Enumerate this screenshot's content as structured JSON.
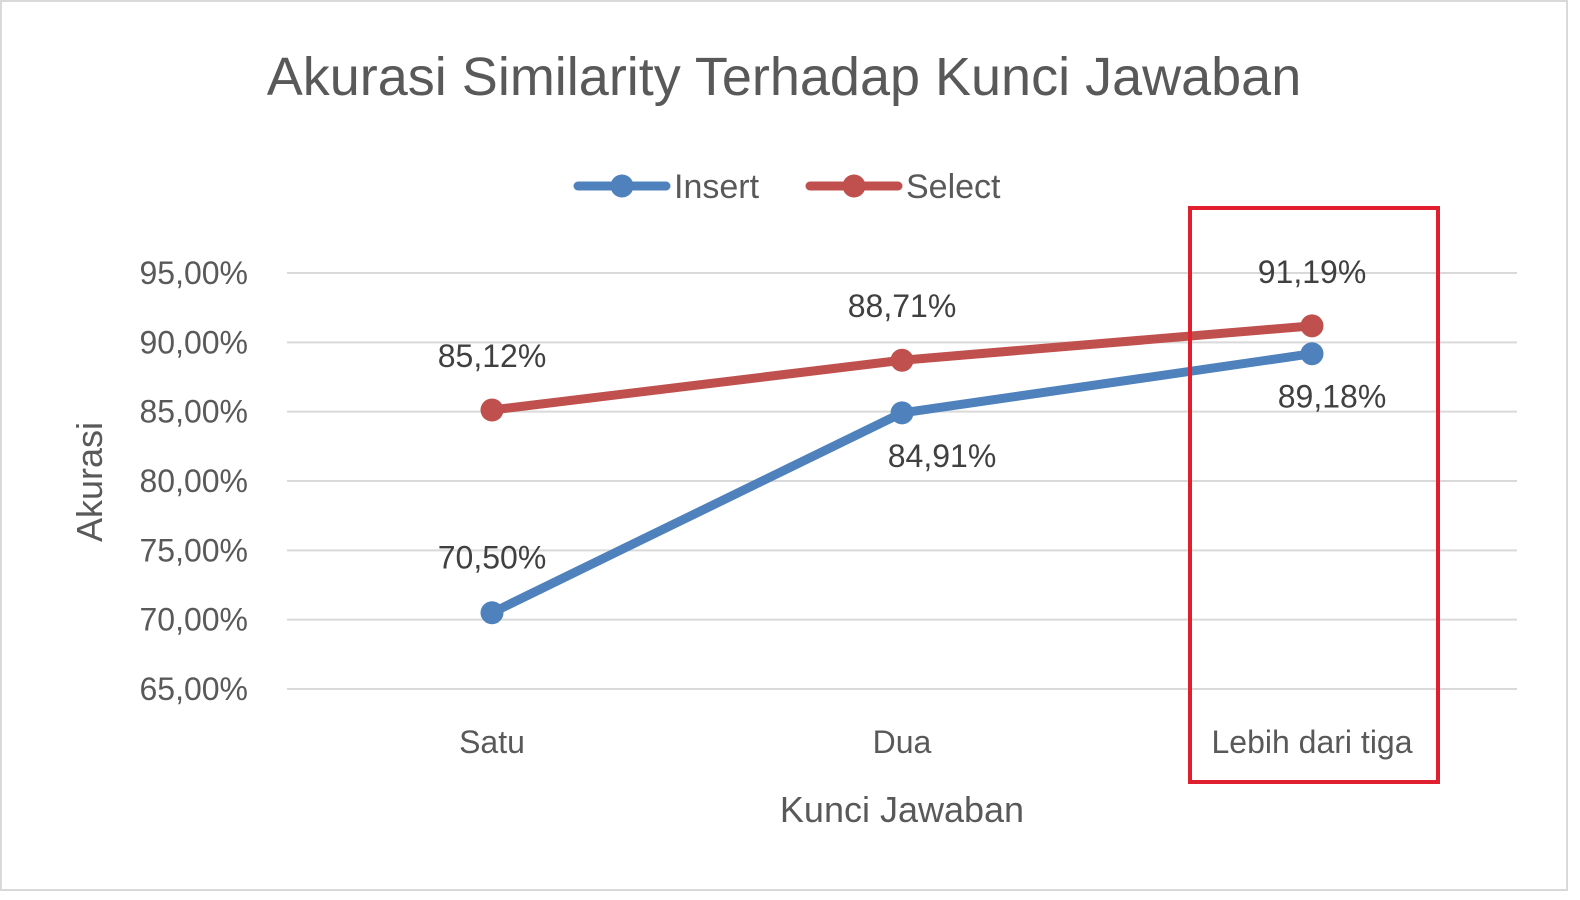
{
  "chart_data": {
    "type": "line",
    "title": "Akurasi Similarity Terhadap Kunci Jawaban",
    "xlabel": "Kunci Jawaban",
    "ylabel": "Akurasi",
    "categories": [
      "Satu",
      "Dua",
      "Lebih dari tiga"
    ],
    "series": [
      {
        "name": "Insert",
        "color": "#4f81bd",
        "values": [
          70.5,
          84.91,
          89.18
        ],
        "labels": [
          "70,50%",
          "84,91%",
          "89,18%"
        ]
      },
      {
        "name": "Select",
        "color": "#c0504d",
        "values": [
          85.12,
          88.71,
          91.19
        ],
        "labels": [
          "85,12%",
          "88,71%",
          "91,19%"
        ]
      }
    ],
    "ylim": [
      65,
      95
    ],
    "yticks": [
      65,
      70,
      75,
      80,
      85,
      90,
      95
    ],
    "ytick_labels": [
      "65,00%",
      "70,00%",
      "75,00%",
      "80,00%",
      "85,00%",
      "90,00%",
      "95,00%"
    ],
    "grid": true,
    "legend_position": "top",
    "highlight": {
      "category": "Lebih dari tiga",
      "color": "#e0202f"
    }
  }
}
